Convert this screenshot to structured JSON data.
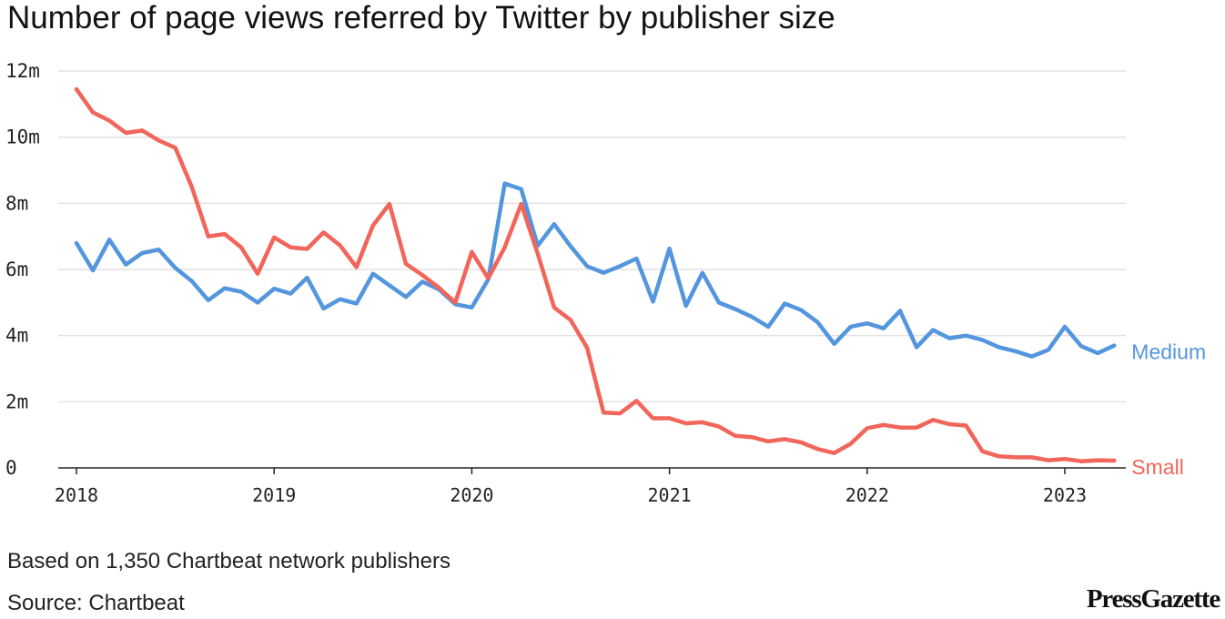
{
  "header": {
    "title": "Number of page views referred by Twitter by publisher size"
  },
  "footer": {
    "note": "Based on 1,350 Chartbeat network publishers",
    "source": "Source: Chartbeat",
    "logo": "PressGazette"
  },
  "colors": {
    "medium": "#5496de",
    "small": "#f2655a",
    "grid": "#e2e2e2",
    "axis": "#222222"
  },
  "chart_data": {
    "type": "line",
    "title": "Number of page views referred by Twitter by publisher size",
    "xlabel": "",
    "ylabel": "",
    "ylim": [
      0,
      12
    ],
    "unit": "m",
    "grid": true,
    "y_ticks": [
      {
        "value": 0,
        "label": "0"
      },
      {
        "value": 2,
        "label": "2m"
      },
      {
        "value": 4,
        "label": "4m"
      },
      {
        "value": 6,
        "label": "6m"
      },
      {
        "value": 8,
        "label": "8m"
      },
      {
        "value": 10,
        "label": "10m"
      },
      {
        "value": 12,
        "label": "12m"
      }
    ],
    "x_ticks": [
      "2018",
      "2019",
      "2020",
      "2021",
      "2022",
      "2023"
    ],
    "start": "2018-01",
    "frequency": "monthly",
    "series": [
      {
        "name": "Medium",
        "color": "#5496de",
        "values": [
          6.8,
          5.97,
          6.9,
          6.15,
          6.5,
          6.6,
          6.05,
          5.65,
          5.07,
          5.43,
          5.33,
          5.0,
          5.42,
          5.27,
          5.75,
          4.82,
          5.1,
          4.97,
          5.87,
          5.52,
          5.17,
          5.63,
          5.4,
          4.95,
          4.85,
          5.7,
          8.6,
          8.43,
          6.72,
          7.37,
          6.7,
          6.1,
          5.9,
          6.1,
          6.33,
          5.03,
          6.63,
          4.9,
          5.9,
          5.0,
          4.8,
          4.57,
          4.27,
          4.97,
          4.77,
          4.4,
          3.75,
          4.27,
          4.37,
          4.22,
          4.75,
          3.65,
          4.17,
          3.92,
          4.0,
          3.87,
          3.65,
          3.53,
          3.37,
          3.57,
          4.27,
          3.68,
          3.47,
          3.7
        ]
      },
      {
        "name": "Small",
        "color": "#f2655a",
        "values": [
          11.45,
          10.75,
          10.5,
          10.13,
          10.2,
          9.9,
          9.68,
          8.5,
          7.0,
          7.07,
          6.67,
          5.87,
          6.97,
          6.67,
          6.62,
          7.12,
          6.73,
          6.07,
          7.33,
          7.98,
          6.17,
          5.83,
          5.45,
          5.0,
          6.53,
          5.73,
          6.67,
          7.98,
          6.48,
          4.85,
          4.47,
          3.63,
          1.67,
          1.65,
          2.03,
          1.5,
          1.5,
          1.35,
          1.38,
          1.25,
          0.97,
          0.93,
          0.8,
          0.87,
          0.77,
          0.57,
          0.45,
          0.73,
          1.2,
          1.3,
          1.22,
          1.22,
          1.45,
          1.32,
          1.28,
          0.5,
          0.35,
          0.32,
          0.32,
          0.23,
          0.27,
          0.2,
          0.23,
          0.22
        ]
      }
    ]
  }
}
